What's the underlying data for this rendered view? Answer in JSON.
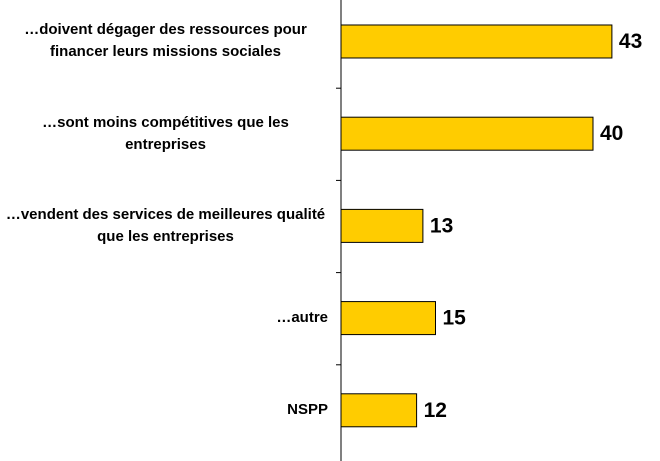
{
  "chart_data": {
    "type": "bar",
    "orientation": "horizontal",
    "categories": [
      "…doivent dégager des ressources pour financer leurs missions sociales",
      "…sont moins compétitives que les entreprises",
      "…vendent des services de meilleures qualité que les entreprises",
      "…autre",
      "NSPP"
    ],
    "values": [
      43,
      40,
      13,
      15,
      12
    ],
    "color": "#ffcc00"
  }
}
